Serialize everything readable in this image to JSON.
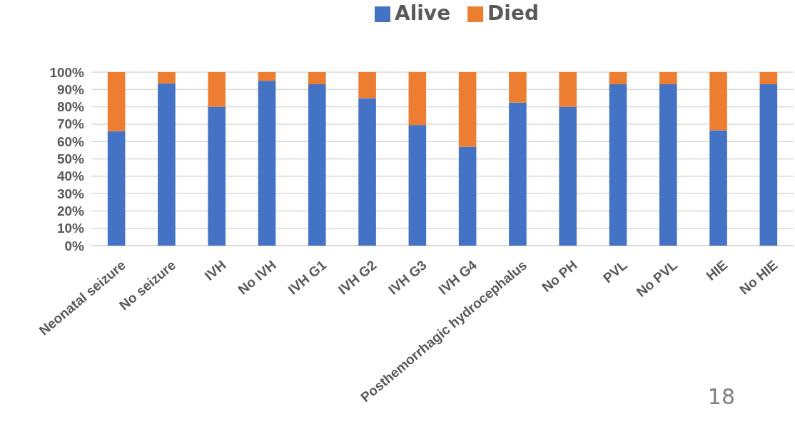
{
  "chart_data": {
    "type": "bar",
    "stacked": true,
    "categories": [
      "Neonatal seizure",
      "No seizure",
      "IVH",
      "No IVH",
      "IVH G1",
      "IVH G2",
      "IVH G3",
      "IVH G4",
      "Posthemorrhagic hydrocephalus",
      "No PH",
      "PVL",
      "No PVL",
      "HIE",
      "No HIE"
    ],
    "series": [
      {
        "name": "Alive",
        "color": "#4472c4",
        "values": [
          66,
          93.5,
          80,
          95,
          93,
          85,
          69.5,
          57,
          82.5,
          80,
          93,
          93,
          66.5,
          93
        ]
      },
      {
        "name": "Died",
        "color": "#ed7d31",
        "values": [
          34,
          6.5,
          20,
          5,
          7,
          15,
          30.5,
          43,
          17.5,
          20,
          7,
          7,
          33.5,
          7
        ]
      }
    ],
    "ylim": [
      0,
      100
    ],
    "yticks": [
      {
        "value": 0,
        "label": "0%"
      },
      {
        "value": 10,
        "label": "10%"
      },
      {
        "value": 20,
        "label": "20%"
      },
      {
        "value": 30,
        "label": "30%"
      },
      {
        "value": 40,
        "label": "40%"
      },
      {
        "value": 50,
        "label": "50%"
      },
      {
        "value": 60,
        "label": "60%"
      },
      {
        "value": 70,
        "label": "70%"
      },
      {
        "value": 80,
        "label": "80%"
      },
      {
        "value": 90,
        "label": "90%"
      },
      {
        "value": 100,
        "label": "100%"
      }
    ],
    "grid": "y",
    "legend": "top",
    "annotations": [
      "18"
    ]
  }
}
